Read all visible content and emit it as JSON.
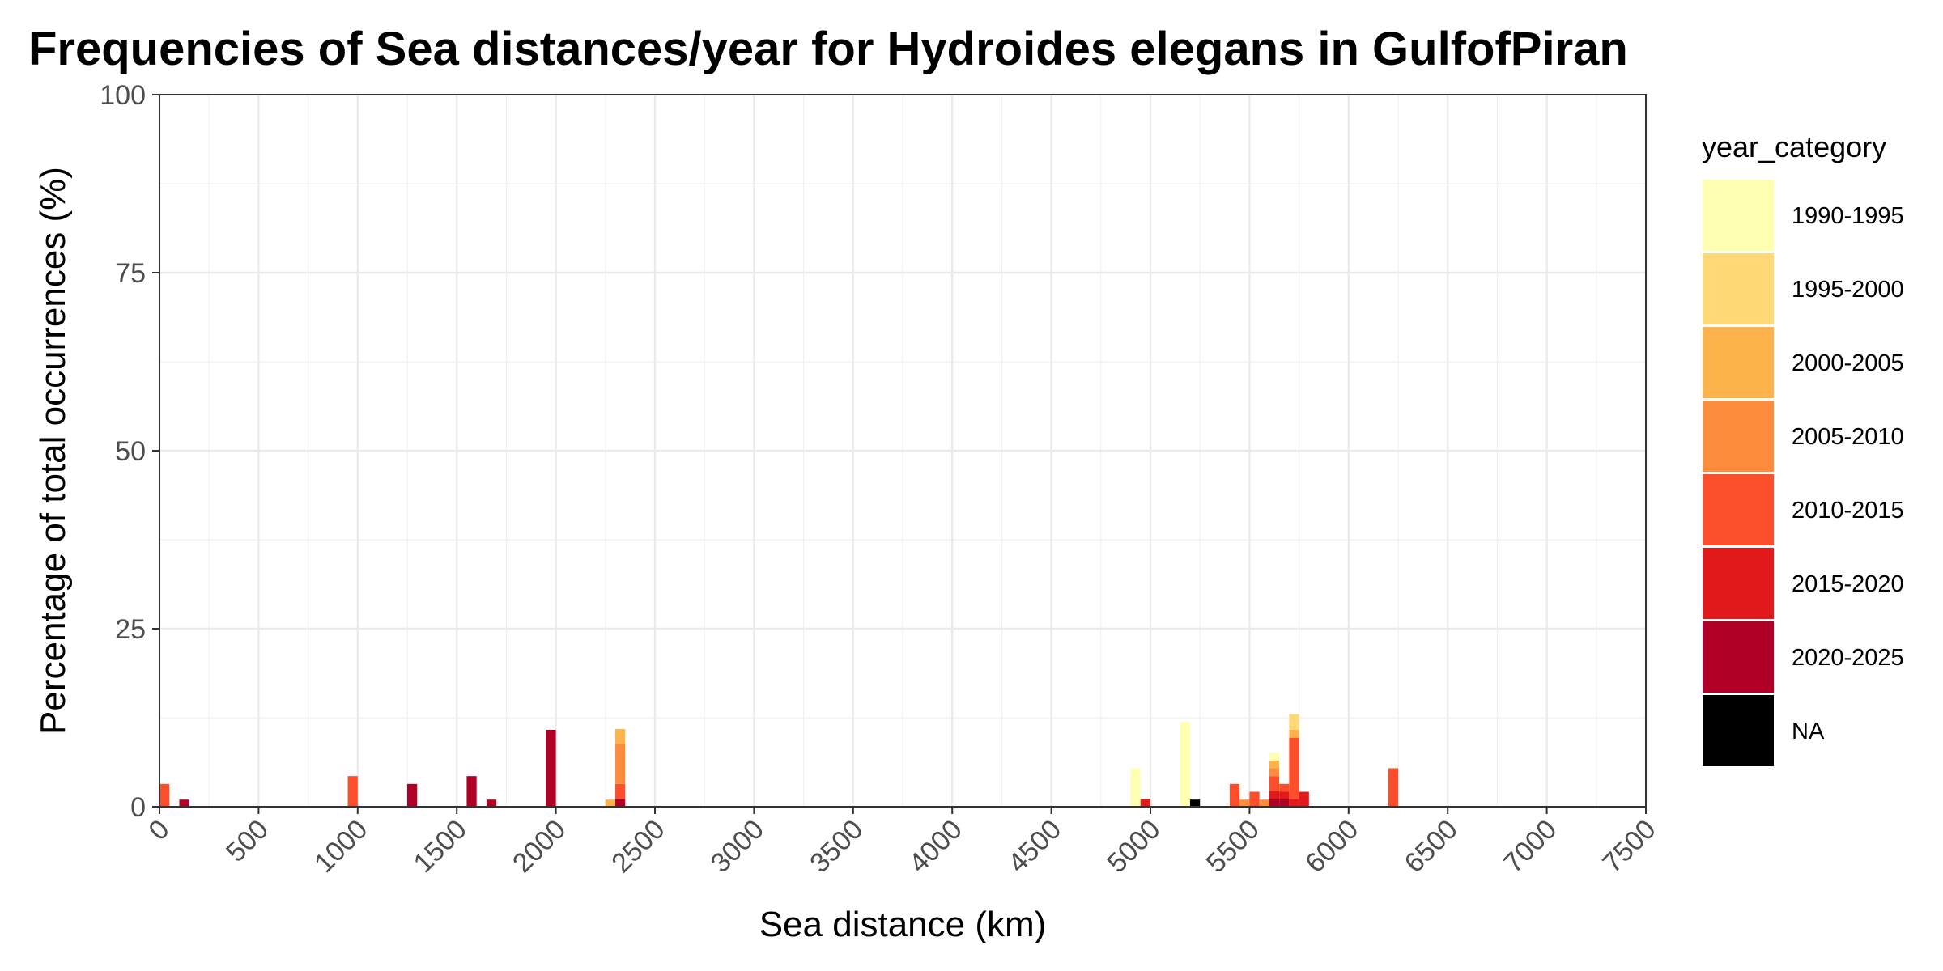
{
  "chart_data": {
    "type": "bar",
    "stacked": true,
    "title": "Frequencies of Sea distances/year for Hydroides elegans in GulfofPiran",
    "xlabel": "Sea distance (km)",
    "ylabel": "Percentage of total occurrences (%)",
    "xlim": [
      0,
      7500
    ],
    "ylim": [
      0,
      100
    ],
    "x_ticks": [
      0,
      500,
      1000,
      1500,
      2000,
      2500,
      3000,
      3500,
      4000,
      4500,
      5000,
      5500,
      6000,
      6500,
      7000,
      7500
    ],
    "y_ticks": [
      0,
      25,
      50,
      75,
      100
    ],
    "grid": true,
    "bin_width": 50,
    "legend": {
      "title": "year_category",
      "position": "right",
      "entries": [
        {
          "label": "1990-1995",
          "color": "#FFFFB2"
        },
        {
          "label": "1995-2000",
          "color": "#FED976"
        },
        {
          "label": "2000-2005",
          "color": "#FEB24C"
        },
        {
          "label": "2005-2010",
          "color": "#FD8D3C"
        },
        {
          "label": "2010-2015",
          "color": "#FC4E2A"
        },
        {
          "label": "2015-2020",
          "color": "#E31A1C"
        },
        {
          "label": "2020-2025",
          "color": "#B10026"
        },
        {
          "label": "NA",
          "color": "#000000"
        }
      ]
    },
    "bars": [
      {
        "x": 25,
        "segments": [
          {
            "category": "2010-2015",
            "value": 3.2
          }
        ]
      },
      {
        "x": 125,
        "segments": [
          {
            "category": "2020-2025",
            "value": 1.0
          }
        ]
      },
      {
        "x": 975,
        "segments": [
          {
            "category": "2010-2015",
            "value": 4.3
          }
        ]
      },
      {
        "x": 1275,
        "segments": [
          {
            "category": "2020-2025",
            "value": 3.2
          }
        ]
      },
      {
        "x": 1575,
        "segments": [
          {
            "category": "2020-2025",
            "value": 4.3
          }
        ]
      },
      {
        "x": 1675,
        "segments": [
          {
            "category": "2020-2025",
            "value": 1.0
          }
        ]
      },
      {
        "x": 1975,
        "segments": [
          {
            "category": "2020-2025",
            "value": 10.8
          }
        ]
      },
      {
        "x": 2275,
        "segments": [
          {
            "category": "2000-2005",
            "value": 1.0
          }
        ]
      },
      {
        "x": 2325,
        "segments": [
          {
            "category": "2020-2025",
            "value": 1.1
          },
          {
            "category": "2010-2015",
            "value": 2.1
          },
          {
            "category": "2005-2010",
            "value": 5.6
          },
          {
            "category": "2000-2005",
            "value": 2.1
          }
        ]
      },
      {
        "x": 4925,
        "segments": [
          {
            "category": "1990-1995",
            "value": 5.4
          }
        ]
      },
      {
        "x": 4975,
        "segments": [
          {
            "category": "2015-2020",
            "value": 1.1
          }
        ]
      },
      {
        "x": 5175,
        "segments": [
          {
            "category": "1990-1995",
            "value": 11.9
          }
        ]
      },
      {
        "x": 5225,
        "segments": [
          {
            "category": "NA",
            "value": 1.0
          }
        ]
      },
      {
        "x": 5425,
        "segments": [
          {
            "category": "2010-2015",
            "value": 3.2
          }
        ]
      },
      {
        "x": 5475,
        "segments": [
          {
            "category": "2005-2010",
            "value": 1.0
          }
        ]
      },
      {
        "x": 5525,
        "segments": [
          {
            "category": "2010-2015",
            "value": 2.1
          }
        ]
      },
      {
        "x": 5575,
        "segments": [
          {
            "category": "2005-2010",
            "value": 1.0
          }
        ]
      },
      {
        "x": 5625,
        "segments": [
          {
            "category": "2020-2025",
            "value": 1.1
          },
          {
            "category": "2015-2020",
            "value": 1.1
          },
          {
            "category": "2010-2015",
            "value": 2.1
          },
          {
            "category": "2005-2010",
            "value": 1.1
          },
          {
            "category": "2000-2005",
            "value": 1.1
          },
          {
            "category": "1990-1995",
            "value": 1.1
          }
        ]
      },
      {
        "x": 5675,
        "segments": [
          {
            "category": "2020-2025",
            "value": 1.1
          },
          {
            "category": "2015-2020",
            "value": 1.0
          },
          {
            "category": "2010-2015",
            "value": 1.1
          }
        ]
      },
      {
        "x": 5725,
        "segments": [
          {
            "category": "2015-2020",
            "value": 1.1
          },
          {
            "category": "2010-2015",
            "value": 8.6
          },
          {
            "category": "2000-2005",
            "value": 1.1
          },
          {
            "category": "1995-2000",
            "value": 2.2
          }
        ]
      },
      {
        "x": 5775,
        "segments": [
          {
            "category": "2015-2020",
            "value": 2.1
          }
        ]
      },
      {
        "x": 6225,
        "segments": [
          {
            "category": "2010-2015",
            "value": 5.4
          }
        ]
      }
    ]
  }
}
